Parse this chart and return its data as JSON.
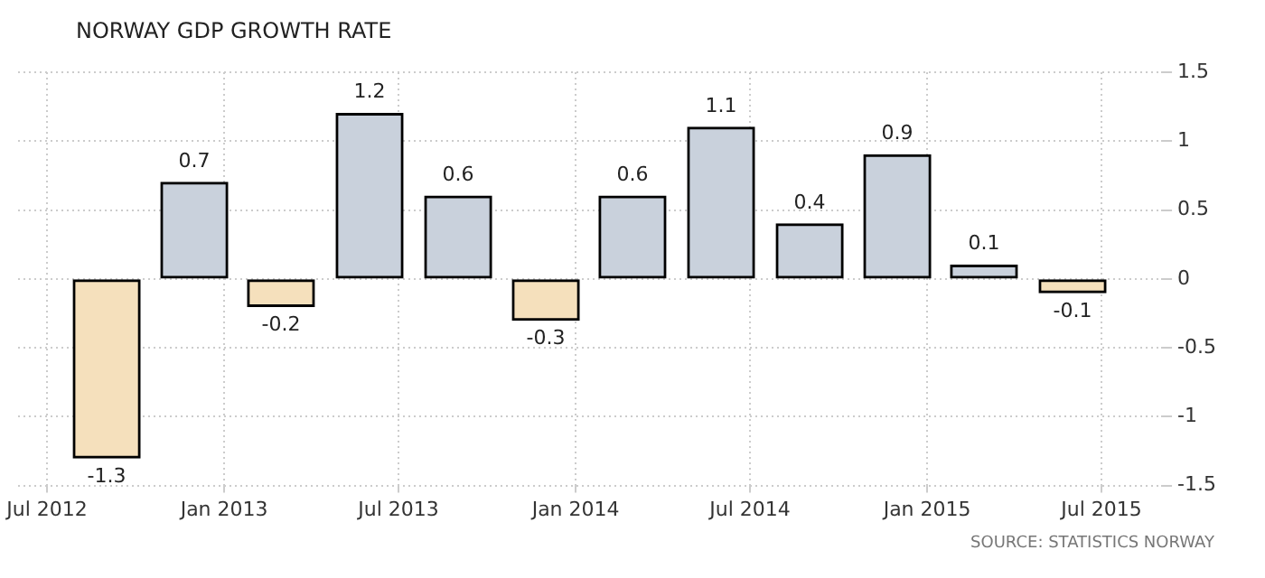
{
  "chart_data": {
    "type": "bar",
    "title": "NORWAY GDP GROWTH RATE",
    "x": [
      "2012-09",
      "2012-12",
      "2013-03",
      "2013-06",
      "2013-09",
      "2013-12",
      "2014-03",
      "2014-06",
      "2014-09",
      "2014-12",
      "2015-03",
      "2015-06"
    ],
    "values": [
      -1.3,
      0.7,
      -0.2,
      1.2,
      0.6,
      -0.3,
      0.6,
      1.1,
      0.4,
      0.9,
      0.1,
      -0.1
    ],
    "colors": [
      "#f5e0bc",
      "#c9d1dc",
      "#f5e0bc",
      "#c9d1dc",
      "#c9d1dc",
      "#f5e0bc",
      "#c9d1dc",
      "#c9d1dc",
      "#c9d1dc",
      "#c9d1dc",
      "#c9d1dc",
      "#f5e0bc"
    ],
    "xlim": [
      "2012-06",
      "2015-09"
    ],
    "xticks": [
      {
        "value": "2012-07",
        "label": "Jul 2012"
      },
      {
        "value": "2013-01",
        "label": "Jan 2013"
      },
      {
        "value": "2013-07",
        "label": "Jul 2013"
      },
      {
        "value": "2014-01",
        "label": "Jan 2014"
      },
      {
        "value": "2014-07",
        "label": "Jul 2014"
      },
      {
        "value": "2015-01",
        "label": "Jan 2015"
      },
      {
        "value": "2015-07",
        "label": "Jul 2015"
      }
    ],
    "ylim": [
      -1.5,
      1.5
    ],
    "yticks": [
      -1.5,
      -1,
      -0.5,
      0,
      0.5,
      1,
      1.5
    ],
    "grid": true,
    "legend": false,
    "data_labels": true,
    "annotations": [
      "SOURCE: STATISTICS NORWAY"
    ]
  }
}
